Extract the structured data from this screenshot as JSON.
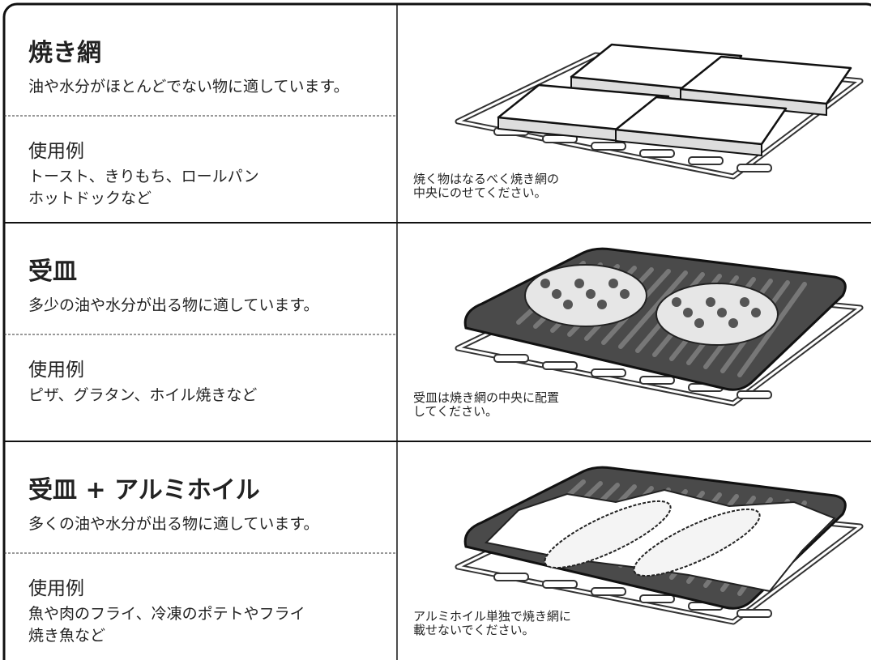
{
  "rows": [
    {
      "title": "焼き網",
      "description": "油や水分がほとんどでない物に適しています。",
      "example_heading": "使用例",
      "examples": [
        "トースト、きりもち、ロールパン",
        "ホットドックなど"
      ],
      "caption": [
        "焼く物はなるべく焼き網の",
        "中央にのせてください。"
      ]
    },
    {
      "title": "受皿",
      "description": "多少の油や水分が出る物に適しています。",
      "example_heading": "使用例",
      "examples": [
        "ピザ、グラタン、ホイル焼きなど"
      ],
      "caption": [
        "受皿は焼き網の中央に配置",
        "してください。"
      ]
    },
    {
      "title": "受皿 + アルミホイル",
      "description": "多くの油や水分が出る物に適しています。",
      "example_heading": "使用例",
      "examples": [
        "魚や肉のフライ、冷凍のポテトやフライ",
        "焼き魚など"
      ],
      "caption": [
        "アルミホイル単独で焼き網に",
        "載せないでください。"
      ]
    }
  ]
}
